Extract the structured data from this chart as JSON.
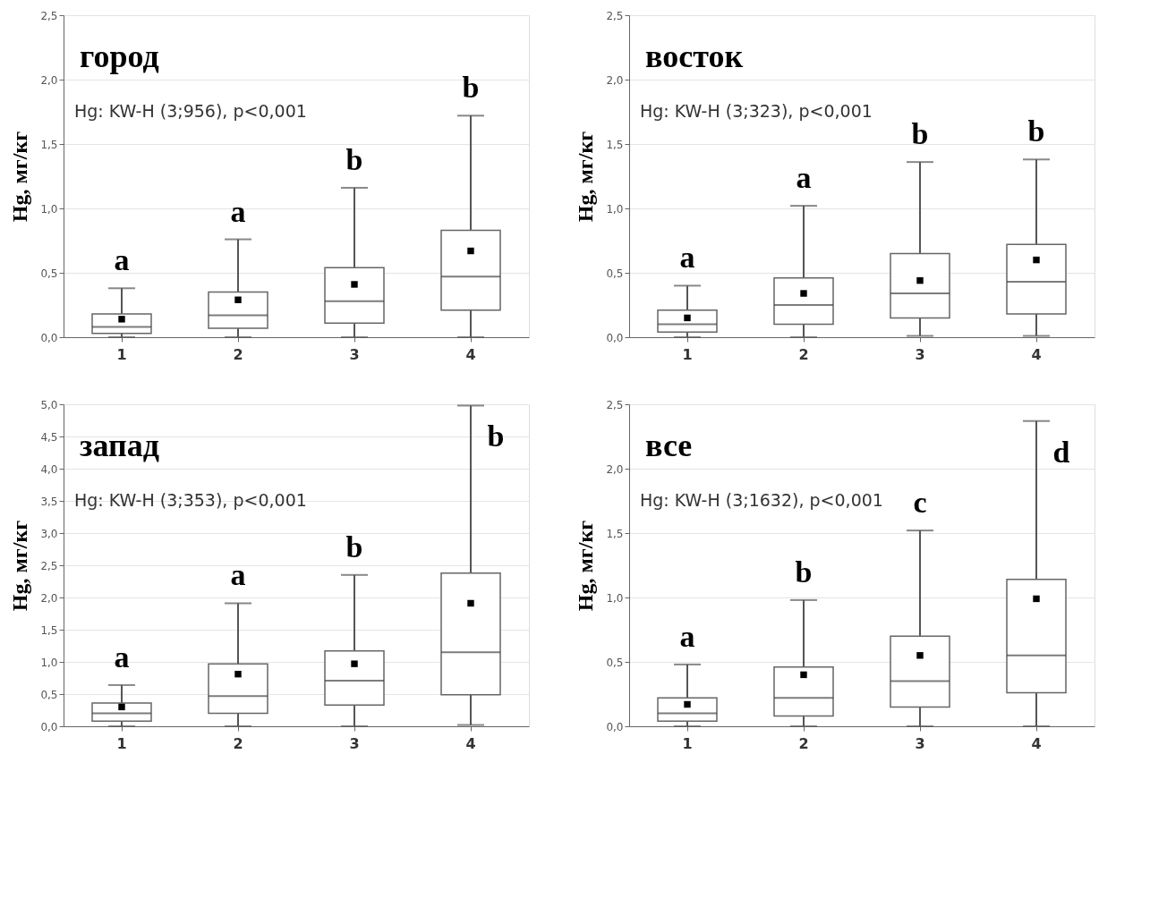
{
  "chart_data": [
    {
      "type": "box",
      "title": "город",
      "ylabel": "Hg, мг/кг",
      "categories": [
        "1",
        "2",
        "3",
        "4"
      ],
      "ylim": [
        0,
        2.5
      ],
      "yticks": [
        {
          "value": 0,
          "label": "0,0"
        },
        {
          "value": 0.5,
          "label": "0,5"
        },
        {
          "value": 1,
          "label": "1,0"
        },
        {
          "value": 1.5,
          "label": "1,5"
        },
        {
          "value": 2,
          "label": "2,0"
        },
        {
          "value": 2.5,
          "label": "2,5"
        }
      ],
      "grid": "y",
      "boxes": [
        {
          "low": 0,
          "q1": 0.03,
          "median": 0.08,
          "q3": 0.18,
          "high": 0.38,
          "mean": 0.14
        },
        {
          "low": 0,
          "q1": 0.07,
          "median": 0.17,
          "q3": 0.35,
          "high": 0.76,
          "mean": 0.29
        },
        {
          "low": 0,
          "q1": 0.11,
          "median": 0.28,
          "q3": 0.54,
          "high": 1.16,
          "mean": 0.41
        },
        {
          "low": 0,
          "q1": 0.21,
          "median": 0.47,
          "q3": 0.83,
          "high": 1.72,
          "mean": 0.67
        }
      ],
      "annotations": [
        "Hg: KW-H (3;956), p<0,001",
        "a",
        "a",
        "b",
        "b"
      ]
    },
    {
      "type": "box",
      "title": "восток",
      "ylabel": "Hg, мг/кг",
      "categories": [
        "1",
        "2",
        "3",
        "4"
      ],
      "ylim": [
        0,
        2.5
      ],
      "yticks": [
        {
          "value": 0,
          "label": "0,0"
        },
        {
          "value": 0.5,
          "label": "0,5"
        },
        {
          "value": 1,
          "label": "1,0"
        },
        {
          "value": 1.5,
          "label": "1,5"
        },
        {
          "value": 2,
          "label": "2,0"
        },
        {
          "value": 2.5,
          "label": "2,5"
        }
      ],
      "grid": "y",
      "boxes": [
        {
          "low": 0,
          "q1": 0.04,
          "median": 0.1,
          "q3": 0.21,
          "high": 0.4,
          "mean": 0.15
        },
        {
          "low": 0,
          "q1": 0.1,
          "median": 0.25,
          "q3": 0.46,
          "high": 1.02,
          "mean": 0.34
        },
        {
          "low": 0.01,
          "q1": 0.15,
          "median": 0.34,
          "q3": 0.65,
          "high": 1.36,
          "mean": 0.44
        },
        {
          "low": 0.01,
          "q1": 0.18,
          "median": 0.43,
          "q3": 0.72,
          "high": 1.38,
          "mean": 0.6
        }
      ],
      "annotations": [
        "Hg: KW-H (3;323), p<0,001",
        "a",
        "a",
        "b",
        "b"
      ]
    },
    {
      "type": "box",
      "title": "запад",
      "ylabel": "Hg, мг/кг",
      "categories": [
        "1",
        "2",
        "3",
        "4"
      ],
      "ylim": [
        0,
        5
      ],
      "yticks": [
        {
          "value": 0,
          "label": "0,0"
        },
        {
          "value": 0.5,
          "label": "0,5"
        },
        {
          "value": 1,
          "label": "1,0"
        },
        {
          "value": 1.5,
          "label": "1,5"
        },
        {
          "value": 2,
          "label": "2,0"
        },
        {
          "value": 2.5,
          "label": "2,5"
        },
        {
          "value": 3,
          "label": "3,0"
        },
        {
          "value": 3.5,
          "label": "3,5"
        },
        {
          "value": 4,
          "label": "4,0"
        },
        {
          "value": 4.5,
          "label": "4,5"
        },
        {
          "value": 5,
          "label": "5,0"
        }
      ],
      "grid": "y",
      "boxes": [
        {
          "low": 0,
          "q1": 0.08,
          "median": 0.2,
          "q3": 0.36,
          "high": 0.64,
          "mean": 0.3
        },
        {
          "low": 0,
          "q1": 0.2,
          "median": 0.47,
          "q3": 0.97,
          "high": 1.91,
          "mean": 0.81
        },
        {
          "low": 0,
          "q1": 0.33,
          "median": 0.71,
          "q3": 1.17,
          "high": 2.35,
          "mean": 0.97
        },
        {
          "low": 0.02,
          "q1": 0.49,
          "median": 1.15,
          "q3": 2.38,
          "high": 4.98,
          "mean": 1.91
        }
      ],
      "annotations": [
        "Hg: KW-H (3;353), p<0,001",
        "a",
        "a",
        "b",
        "b"
      ]
    },
    {
      "type": "box",
      "title": "все",
      "ylabel": "Hg, мг/кг",
      "categories": [
        "1",
        "2",
        "3",
        "4"
      ],
      "ylim": [
        0,
        2.5
      ],
      "yticks": [
        {
          "value": 0,
          "label": "0,0"
        },
        {
          "value": 0.5,
          "label": "0,5"
        },
        {
          "value": 1,
          "label": "1,0"
        },
        {
          "value": 1.5,
          "label": "1,5"
        },
        {
          "value": 2,
          "label": "2,0"
        },
        {
          "value": 2.5,
          "label": "2,5"
        }
      ],
      "grid": "y",
      "boxes": [
        {
          "low": 0,
          "q1": 0.04,
          "median": 0.1,
          "q3": 0.22,
          "high": 0.48,
          "mean": 0.17
        },
        {
          "low": 0,
          "q1": 0.08,
          "median": 0.22,
          "q3": 0.46,
          "high": 0.98,
          "mean": 0.4
        },
        {
          "low": 0,
          "q1": 0.15,
          "median": 0.35,
          "q3": 0.7,
          "high": 1.52,
          "mean": 0.55
        },
        {
          "low": 0,
          "q1": 0.26,
          "median": 0.55,
          "q3": 1.14,
          "high": 2.37,
          "mean": 0.99
        }
      ],
      "annotations": [
        "Hg: KW-H (3;1632), p<0,001",
        "a",
        "b",
        "c",
        "d"
      ]
    }
  ]
}
